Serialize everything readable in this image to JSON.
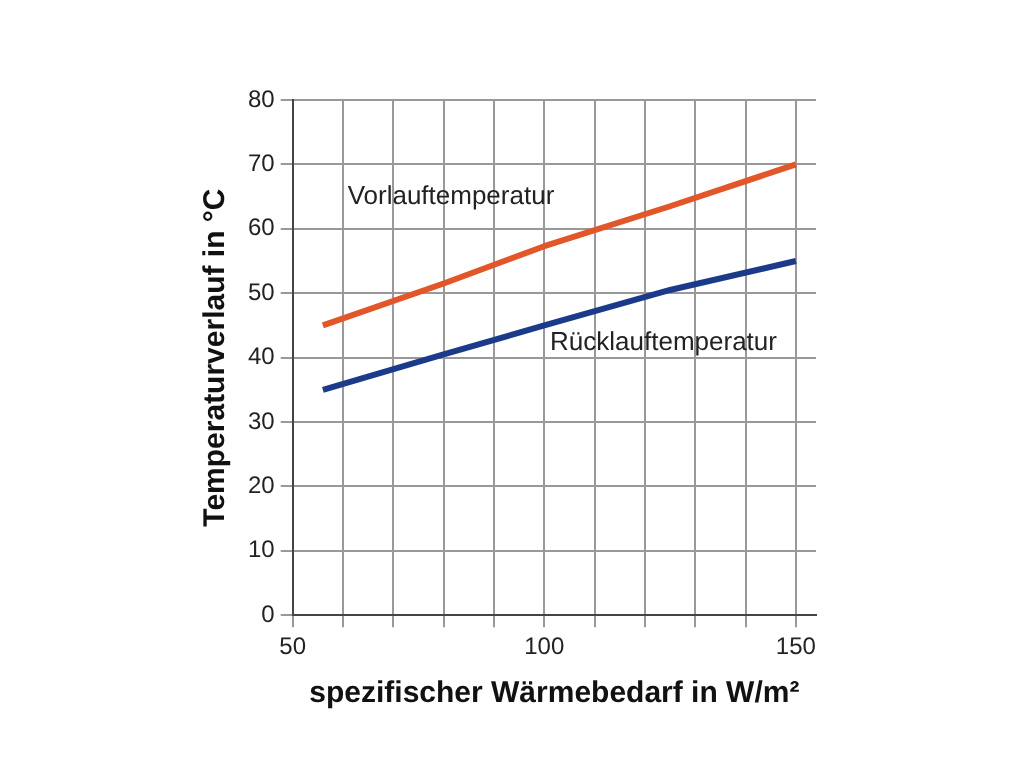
{
  "chart_data": {
    "type": "line",
    "xlabel": "spezifischer Wärmebedarf in W/m²",
    "ylabel": "Temperaturverlauf in °C",
    "series": [
      {
        "name": "Vorlauftemperatur",
        "color": "#e2572a",
        "x": [
          56,
          80,
          100,
          125,
          150
        ],
        "values": [
          45,
          51.5,
          57.3,
          63.5,
          70
        ]
      },
      {
        "name": "Rücklauftemperatur",
        "color": "#1c3a8a",
        "x": [
          56,
          80,
          100,
          125,
          150
        ],
        "values": [
          35,
          40.5,
          45,
          50.5,
          55
        ]
      }
    ],
    "xlim": [
      50,
      154
    ],
    "xticks": [
      50,
      {
        "value": 60,
        "label": null
      },
      {
        "value": 70,
        "label": null
      },
      {
        "value": 80,
        "label": null
      },
      {
        "value": 90,
        "label": null
      },
      100,
      {
        "value": 110,
        "label": null
      },
      {
        "value": 120,
        "label": null
      },
      {
        "value": 130,
        "label": null
      },
      {
        "value": 140,
        "label": null
      },
      150
    ],
    "ylim": [
      0,
      80
    ],
    "yticks": [
      0,
      10,
      20,
      30,
      40,
      50,
      60,
      70,
      80
    ],
    "grid": true,
    "legend": false,
    "marker": "none",
    "line_style": "solid"
  }
}
